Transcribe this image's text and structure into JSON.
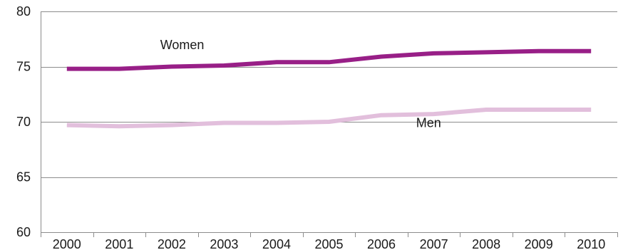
{
  "colors": {
    "women": "#981f87",
    "men": "#e2bfdc",
    "grid": "#8c8c8c",
    "axis": "#8c8c8c",
    "text": "#1a1a1a"
  },
  "chart_data": {
    "type": "line",
    "title": "",
    "xlabel": "",
    "ylabel": "",
    "x": [
      2000,
      2001,
      2002,
      2003,
      2004,
      2005,
      2006,
      2007,
      2008,
      2009,
      2010
    ],
    "ylim": [
      60,
      80
    ],
    "yticks": [
      60,
      65,
      70,
      75,
      80
    ],
    "grid": true,
    "legend": "none",
    "series": [
      {
        "name": "Women",
        "color": "#981f87",
        "values": [
          74.8,
          74.8,
          75.0,
          75.1,
          75.4,
          75.4,
          75.9,
          76.2,
          76.3,
          76.4,
          76.4
        ]
      },
      {
        "name": "Men",
        "color": "#e2bfdc",
        "values": [
          69.7,
          69.6,
          69.7,
          69.9,
          69.9,
          70.0,
          70.6,
          70.7,
          71.1,
          71.1,
          71.1
        ]
      }
    ]
  }
}
